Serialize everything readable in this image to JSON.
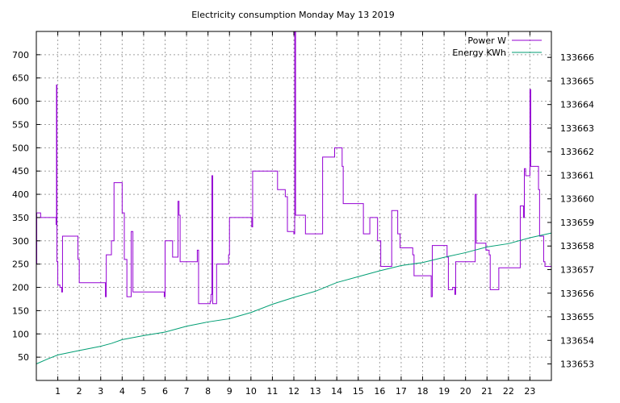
{
  "chart_data": {
    "type": "line",
    "title": "Electricity consumption Monday May 13 2019",
    "xlabel": "",
    "ylabel": "",
    "y2label": "",
    "xlim": [
      0,
      24
    ],
    "ylim": [
      0,
      750
    ],
    "y2lim": [
      133652.3,
      133667.1
    ],
    "xticks": [
      1,
      2,
      3,
      4,
      5,
      6,
      7,
      8,
      9,
      10,
      11,
      12,
      13,
      14,
      15,
      16,
      17,
      18,
      19,
      20,
      21,
      22,
      23
    ],
    "yticks": [
      50,
      100,
      150,
      200,
      250,
      300,
      350,
      400,
      450,
      500,
      550,
      600,
      650,
      700
    ],
    "y2ticks": [
      133653,
      133654,
      133655,
      133656,
      133657,
      133658,
      133659,
      133660,
      133661,
      133662,
      133663,
      133664,
      133665,
      133666
    ],
    "grid": true,
    "legend": "top-right",
    "series": [
      {
        "name": "Power W",
        "axis": "y1",
        "color": "#9400d3",
        "step": true,
        "points": [
          [
            0.0,
            250
          ],
          [
            0.02,
            360
          ],
          [
            0.2,
            350
          ],
          [
            0.9,
            350
          ],
          [
            0.92,
            335
          ],
          [
            0.94,
            635
          ],
          [
            0.96,
            255
          ],
          [
            1.0,
            205
          ],
          [
            1.1,
            200
          ],
          [
            1.18,
            190
          ],
          [
            1.22,
            310
          ],
          [
            1.9,
            310
          ],
          [
            1.94,
            260
          ],
          [
            2.0,
            210
          ],
          [
            3.2,
            210
          ],
          [
            3.22,
            180
          ],
          [
            3.26,
            270
          ],
          [
            3.5,
            300
          ],
          [
            3.62,
            425
          ],
          [
            4.0,
            360
          ],
          [
            4.1,
            260
          ],
          [
            4.22,
            180
          ],
          [
            4.42,
            320
          ],
          [
            4.5,
            190
          ],
          [
            5.96,
            180
          ],
          [
            6.0,
            300
          ],
          [
            6.35,
            265
          ],
          [
            6.6,
            385
          ],
          [
            6.65,
            355
          ],
          [
            6.7,
            255
          ],
          [
            7.5,
            280
          ],
          [
            7.56,
            165
          ],
          [
            8.1,
            170
          ],
          [
            8.14,
            185
          ],
          [
            8.18,
            440
          ],
          [
            8.22,
            165
          ],
          [
            8.4,
            250
          ],
          [
            8.96,
            270
          ],
          [
            9.0,
            350
          ],
          [
            10.0,
            350
          ],
          [
            10.04,
            330
          ],
          [
            10.08,
            450
          ],
          [
            11.2,
            450
          ],
          [
            11.24,
            410
          ],
          [
            11.6,
            395
          ],
          [
            11.7,
            320
          ],
          [
            12.0,
            315
          ],
          [
            12.04,
            750
          ],
          [
            12.08,
            355
          ],
          [
            12.5,
            355
          ],
          [
            12.54,
            315
          ],
          [
            13.3,
            315
          ],
          [
            13.34,
            480
          ],
          [
            13.85,
            480
          ],
          [
            13.9,
            500
          ],
          [
            14.2,
            500
          ],
          [
            14.25,
            460
          ],
          [
            14.3,
            380
          ],
          [
            15.2,
            380
          ],
          [
            15.24,
            315
          ],
          [
            15.5,
            315
          ],
          [
            15.54,
            350
          ],
          [
            15.85,
            350
          ],
          [
            15.9,
            300
          ],
          [
            16.05,
            245
          ],
          [
            16.5,
            245
          ],
          [
            16.56,
            365
          ],
          [
            16.8,
            365
          ],
          [
            16.84,
            315
          ],
          [
            16.95,
            285
          ],
          [
            17.5,
            285
          ],
          [
            17.54,
            270
          ],
          [
            17.6,
            225
          ],
          [
            18.35,
            225
          ],
          [
            18.4,
            180
          ],
          [
            18.45,
            290
          ],
          [
            19.1,
            290
          ],
          [
            19.14,
            265
          ],
          [
            19.2,
            195
          ],
          [
            19.4,
            200
          ],
          [
            19.5,
            185
          ],
          [
            19.54,
            255
          ],
          [
            20.4,
            255
          ],
          [
            20.45,
            400
          ],
          [
            20.5,
            295
          ],
          [
            20.9,
            295
          ],
          [
            20.95,
            280
          ],
          [
            21.1,
            270
          ],
          [
            21.15,
            195
          ],
          [
            21.5,
            195
          ],
          [
            21.55,
            242
          ],
          [
            22.5,
            242
          ],
          [
            22.55,
            375
          ],
          [
            22.7,
            350
          ],
          [
            22.74,
            455
          ],
          [
            22.8,
            440
          ],
          [
            23.0,
            625
          ],
          [
            23.04,
            460
          ],
          [
            23.35,
            460
          ],
          [
            23.4,
            410
          ],
          [
            23.45,
            310
          ],
          [
            23.6,
            310
          ],
          [
            23.64,
            255
          ],
          [
            23.7,
            245
          ],
          [
            24.0,
            245
          ]
        ]
      },
      {
        "name": "Energy KWh",
        "axis": "y2",
        "color": "#009e73",
        "step": false,
        "points": [
          [
            0.0,
            133653.0
          ],
          [
            0.5,
            133653.2
          ],
          [
            1.0,
            133653.38
          ],
          [
            2.0,
            133653.57
          ],
          [
            3.0,
            133653.75
          ],
          [
            3.5,
            133653.87
          ],
          [
            4.0,
            133654.03
          ],
          [
            5.0,
            133654.2
          ],
          [
            6.0,
            133654.35
          ],
          [
            7.0,
            133654.6
          ],
          [
            8.0,
            133654.78
          ],
          [
            9.0,
            133654.92
          ],
          [
            10.0,
            133655.18
          ],
          [
            11.0,
            133655.53
          ],
          [
            12.0,
            133655.82
          ],
          [
            13.0,
            133656.08
          ],
          [
            14.0,
            133656.45
          ],
          [
            15.0,
            133656.7
          ],
          [
            16.0,
            133656.95
          ],
          [
            17.0,
            133657.17
          ],
          [
            18.0,
            133657.3
          ],
          [
            19.0,
            133657.52
          ],
          [
            20.0,
            133657.72
          ],
          [
            21.0,
            133657.96
          ],
          [
            22.0,
            133658.1
          ],
          [
            23.0,
            133658.35
          ],
          [
            24.0,
            133658.55
          ]
        ]
      }
    ]
  }
}
